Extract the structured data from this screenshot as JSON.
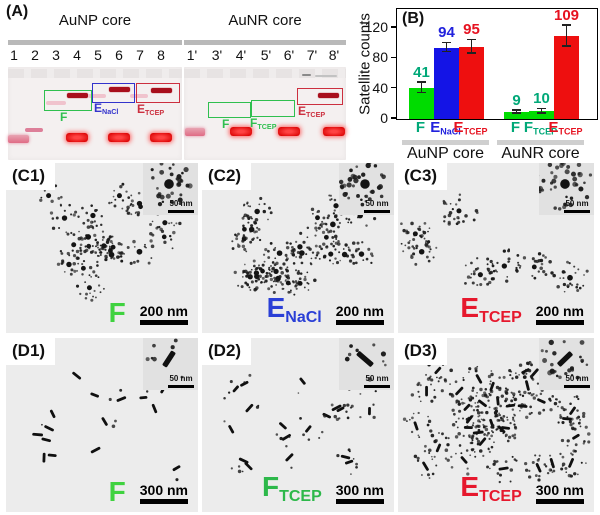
{
  "panel_a": {
    "label": "(A)",
    "gel_left": {
      "title": "AuNP core",
      "lanes": [
        "1",
        "2",
        "3",
        "4",
        "5",
        "6",
        "7",
        "8"
      ],
      "boxes": [
        {
          "main": "F",
          "sub": "",
          "color": "#2fbf4f"
        },
        {
          "main": "E",
          "sub": "NaCl",
          "color": "#3333cc"
        },
        {
          "main": "E",
          "sub": "TCEP",
          "color": "#cc2f3f"
        }
      ]
    },
    "gel_right": {
      "title": "AuNR core",
      "lanes": [
        "1'",
        "3'",
        "4'",
        "5'",
        "6'",
        "7'",
        "8'"
      ],
      "boxes": [
        {
          "main": "F",
          "sub": "",
          "color": "#2fbf4f"
        },
        {
          "main": "F",
          "sub": "TCEP",
          "color": "#2fbf4f"
        },
        {
          "main": "E",
          "sub": "TCEP",
          "color": "#cc2f3f"
        }
      ]
    }
  },
  "panel_b": {
    "label": "(B)"
  },
  "chart_data": {
    "type": "bar",
    "title": "",
    "xlabel": "",
    "ylabel": "Satellite counts",
    "ylim": [
      0,
      145
    ],
    "yticks": [
      0,
      40,
      80,
      120
    ],
    "grid": false,
    "legend_position": "none",
    "groups": [
      {
        "name": "AuNP core",
        "bars": [
          {
            "label": "F",
            "sub": "",
            "value": 41,
            "error": 7,
            "bar_color": "#00dc00",
            "text_color": "#00a878"
          },
          {
            "label": "E",
            "sub": "NaCl",
            "value": 94,
            "error": 6,
            "bar_color": "#1414e6",
            "text_color": "#2222dd"
          },
          {
            "label": "E",
            "sub": "TCEP",
            "value": 95,
            "error": 9,
            "bar_color": "#ee0f0f",
            "text_color": "#e61220"
          }
        ]
      },
      {
        "name": "AuNR core",
        "bars": [
          {
            "label": "F",
            "sub": "",
            "value": 9,
            "error": 2,
            "bar_color": "#00dc00",
            "text_color": "#00a878"
          },
          {
            "label": "F",
            "sub": "TCEP",
            "value": 10,
            "error": 3,
            "bar_color": "#00dc00",
            "text_color": "#00a878"
          },
          {
            "label": "E",
            "sub": "TCEP",
            "value": 109,
            "error": 14,
            "bar_color": "#ee0f0f",
            "text_color": "#e61220"
          }
        ]
      }
    ]
  },
  "tem_panels": [
    {
      "id": "(C1)",
      "label_main": "F",
      "label_sub": "",
      "label_color": "#3fd23f",
      "scale": "200 nm",
      "inset_scale": "50 nm"
    },
    {
      "id": "(C2)",
      "label_main": "E",
      "label_sub": "NaCl",
      "label_color": "#2a3fd6",
      "scale": "200 nm",
      "inset_scale": "50 nm"
    },
    {
      "id": "(C3)",
      "label_main": "E",
      "label_sub": "TCEP",
      "label_color": "#e6182d",
      "scale": "200 nm",
      "inset_scale": "50 nm"
    },
    {
      "id": "(D1)",
      "label_main": "F",
      "label_sub": "",
      "label_color": "#3fd23f",
      "scale": "300 nm",
      "inset_scale": "50 nm"
    },
    {
      "id": "(D2)",
      "label_main": "F",
      "label_sub": "TCEP",
      "label_color": "#2db84a",
      "scale": "300 nm",
      "inset_scale": "50 nm"
    },
    {
      "id": "(D3)",
      "label_main": "E",
      "label_sub": "TCEP",
      "label_color": "#e6182d",
      "scale": "300 nm",
      "inset_scale": "50 nm"
    }
  ]
}
